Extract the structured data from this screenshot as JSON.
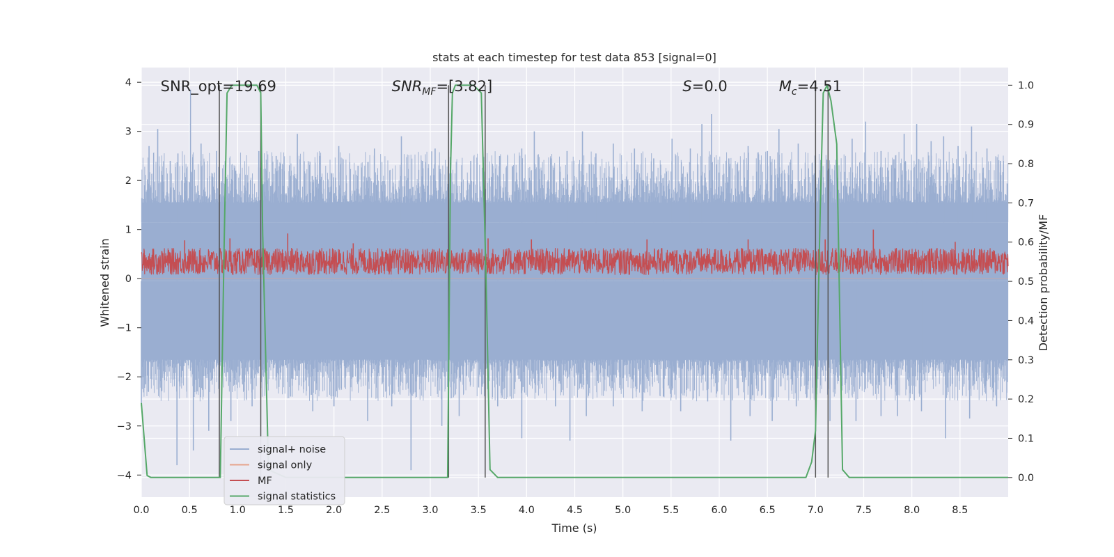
{
  "chart_data": {
    "type": "line",
    "title": "stats at each timestep for test data 853 [signal=0]",
    "xlabel": "Time (s)",
    "ylabel": "Whitened strain",
    "y2label": "Detection probability/MF",
    "xlim": [
      0.0,
      9.0
    ],
    "ylim": [
      -4.45,
      4.3
    ],
    "y2lim": [
      -0.05,
      1.045
    ],
    "xticks": [
      "0.0",
      "0.5",
      "1.0",
      "1.5",
      "2.0",
      "2.5",
      "3.0",
      "3.5",
      "4.0",
      "4.5",
      "5.0",
      "5.5",
      "6.0",
      "6.5",
      "7.0",
      "7.5",
      "8.0",
      "8.5"
    ],
    "yticks": [
      4,
      3,
      2,
      1,
      0,
      -1,
      -2,
      -3,
      -4
    ],
    "y2ticks": [
      "1.0",
      "0.9",
      "0.8",
      "0.7",
      "0.6",
      "0.5",
      "0.4",
      "0.3",
      "0.2",
      "0.1",
      "0.0"
    ],
    "grid": true,
    "legend_position": "lower-left",
    "colors": {
      "background": "#eaeaf2",
      "grid": "#ffffff",
      "noise": "#9aaed1",
      "signal_only": "#e6a48c",
      "mf": "#c44e52",
      "stat": "#55a868",
      "vline": "#555555"
    },
    "annotations": [
      {
        "text": "SNR_opt=19.69",
        "x": 0.2,
        "y": 3.92
      },
      {
        "text": "SNR",
        "sub": "MF",
        "rest": "=[3.82]",
        "x": 2.6,
        "y": 3.92
      },
      {
        "text": "S",
        "rest": "=0.0",
        "x": 5.62,
        "y": 3.92
      },
      {
        "text": "M",
        "sub": "c",
        "rest": "=4.51",
        "x": 6.62,
        "y": 3.92
      }
    ],
    "vlines": [
      0.81,
      1.24,
      3.19,
      3.57,
      7.0,
      7.13
    ],
    "noise_band": {
      "upper_y": [
        1.15,
        1.55,
        2.6
      ],
      "lower_y": [
        -0.05,
        -1.65,
        -2.5
      ]
    },
    "mf_band": {
      "low": 0.08,
      "high": 0.62
    },
    "series": [
      {
        "name": "signal+ noise",
        "kind": "noise",
        "peaks": [
          {
            "x": 0.08,
            "y": 2.7
          },
          {
            "x": 0.17,
            "y": 3.05
          },
          {
            "x": 0.3,
            "y": 2.4
          },
          {
            "x": 0.38,
            "y": 2.55
          },
          {
            "x": 0.51,
            "y": 3.85
          },
          {
            "x": 0.62,
            "y": 2.75
          },
          {
            "x": 0.78,
            "y": 2.6
          },
          {
            "x": 0.98,
            "y": 2.2
          },
          {
            "x": 1.22,
            "y": 2.6
          },
          {
            "x": 1.4,
            "y": 2.5
          },
          {
            "x": 1.62,
            "y": 2.95
          },
          {
            "x": 1.85,
            "y": 2.5
          },
          {
            "x": 2.05,
            "y": 2.7
          },
          {
            "x": 2.25,
            "y": 2.3
          },
          {
            "x": 2.42,
            "y": 2.65
          },
          {
            "x": 2.7,
            "y": 2.9
          },
          {
            "x": 2.92,
            "y": 2.4
          },
          {
            "x": 3.05,
            "y": 2.65
          },
          {
            "x": 3.42,
            "y": 2.4
          },
          {
            "x": 3.72,
            "y": 2.5
          },
          {
            "x": 3.95,
            "y": 2.65
          },
          {
            "x": 4.08,
            "y": 3.0
          },
          {
            "x": 4.25,
            "y": 2.45
          },
          {
            "x": 4.42,
            "y": 2.6
          },
          {
            "x": 4.58,
            "y": 3.0
          },
          {
            "x": 4.72,
            "y": 2.55
          },
          {
            "x": 4.9,
            "y": 2.75
          },
          {
            "x": 5.12,
            "y": 2.65
          },
          {
            "x": 5.32,
            "y": 2.45
          },
          {
            "x": 5.51,
            "y": 2.85
          },
          {
            "x": 5.7,
            "y": 2.65
          },
          {
            "x": 5.82,
            "y": 3.15
          },
          {
            "x": 5.92,
            "y": 3.35
          },
          {
            "x": 6.1,
            "y": 2.45
          },
          {
            "x": 6.3,
            "y": 2.7
          },
          {
            "x": 6.5,
            "y": 2.6
          },
          {
            "x": 6.62,
            "y": 3.05
          },
          {
            "x": 6.82,
            "y": 2.75
          },
          {
            "x": 7.22,
            "y": 2.7
          },
          {
            "x": 7.38,
            "y": 2.85
          },
          {
            "x": 7.52,
            "y": 3.2
          },
          {
            "x": 7.68,
            "y": 2.6
          },
          {
            "x": 7.92,
            "y": 2.95
          },
          {
            "x": 8.05,
            "y": 3.15
          },
          {
            "x": 8.2,
            "y": 2.8
          },
          {
            "x": 8.33,
            "y": 2.9
          },
          {
            "x": 8.48,
            "y": 2.7
          },
          {
            "x": 8.62,
            "y": 3.1
          },
          {
            "x": 8.78,
            "y": 2.65
          },
          {
            "x": 8.92,
            "y": 2.4
          }
        ],
        "troughs": [
          {
            "x": 0.0,
            "y": -2.6
          },
          {
            "x": 0.37,
            "y": -3.8
          },
          {
            "x": 0.54,
            "y": -3.5
          },
          {
            "x": 0.7,
            "y": -3.1
          },
          {
            "x": 0.93,
            "y": -2.9
          },
          {
            "x": 1.15,
            "y": -2.6
          },
          {
            "x": 1.55,
            "y": -2.4
          },
          {
            "x": 1.78,
            "y": -2.7
          },
          {
            "x": 2.0,
            "y": -2.6
          },
          {
            "x": 2.35,
            "y": -2.9
          },
          {
            "x": 2.6,
            "y": -2.6
          },
          {
            "x": 2.8,
            "y": -3.9
          },
          {
            "x": 3.12,
            "y": -3.0
          },
          {
            "x": 3.3,
            "y": -2.8
          },
          {
            "x": 3.7,
            "y": -2.6
          },
          {
            "x": 3.95,
            "y": -3.25
          },
          {
            "x": 4.3,
            "y": -2.6
          },
          {
            "x": 4.45,
            "y": -3.3
          },
          {
            "x": 4.62,
            "y": -2.8
          },
          {
            "x": 4.9,
            "y": -2.6
          },
          {
            "x": 5.2,
            "y": -2.7
          },
          {
            "x": 5.42,
            "y": -2.4
          },
          {
            "x": 5.6,
            "y": -2.7
          },
          {
            "x": 5.88,
            "y": -2.5
          },
          {
            "x": 6.12,
            "y": -3.3
          },
          {
            "x": 6.32,
            "y": -2.8
          },
          {
            "x": 6.55,
            "y": -2.9
          },
          {
            "x": 6.8,
            "y": -2.6
          },
          {
            "x": 7.15,
            "y": -2.9
          },
          {
            "x": 7.42,
            "y": -2.9
          },
          {
            "x": 7.68,
            "y": -2.8
          },
          {
            "x": 7.85,
            "y": -2.8
          },
          {
            "x": 8.1,
            "y": -2.7
          },
          {
            "x": 8.35,
            "y": -3.25
          },
          {
            "x": 8.6,
            "y": -2.85
          },
          {
            "x": 8.88,
            "y": -2.6
          }
        ]
      },
      {
        "name": "signal only",
        "kind": "signal_only",
        "x": [
          0.0,
          9.0
        ],
        "y": [
          0.0,
          0.0
        ]
      },
      {
        "name": "MF",
        "kind": "mf",
        "spikes": [
          {
            "x": 0.45,
            "y": 0.78
          },
          {
            "x": 0.92,
            "y": 0.82
          },
          {
            "x": 1.52,
            "y": 0.92
          },
          {
            "x": 2.2,
            "y": 0.72
          },
          {
            "x": 3.6,
            "y": 0.82
          },
          {
            "x": 4.05,
            "y": 0.8
          },
          {
            "x": 5.25,
            "y": 0.8
          },
          {
            "x": 6.3,
            "y": 0.8
          },
          {
            "x": 7.1,
            "y": 0.8
          },
          {
            "x": 7.6,
            "y": 1.0
          },
          {
            "x": 8.45,
            "y": 0.75
          }
        ]
      },
      {
        "name": "signal statistics",
        "kind": "stat",
        "axis": "right",
        "x": [
          0.0,
          0.06,
          0.1,
          0.2,
          0.4,
          0.6,
          0.8,
          0.82,
          0.86,
          0.89,
          0.94,
          1.05,
          1.15,
          1.2,
          1.24,
          1.26,
          1.32,
          1.5,
          2.0,
          2.5,
          3.0,
          3.18,
          3.21,
          3.23,
          3.26,
          3.3,
          3.45,
          3.53,
          3.58,
          3.62,
          3.7,
          4.0,
          5.0,
          6.0,
          6.9,
          6.96,
          7.0,
          7.05,
          7.08,
          7.12,
          7.16,
          7.22,
          7.28,
          7.35,
          8.0,
          9.0
        ],
        "y": [
          0.19,
          0.005,
          0.0,
          0.0,
          0.0,
          0.0,
          0.0,
          0.0,
          0.6,
          0.98,
          1.0,
          1.0,
          1.0,
          1.0,
          0.98,
          0.62,
          0.02,
          0.0,
          0.0,
          0.0,
          0.0,
          0.0,
          0.78,
          0.98,
          1.0,
          1.0,
          1.0,
          0.98,
          0.5,
          0.02,
          0.0,
          0.0,
          0.0,
          0.0,
          0.0,
          0.04,
          0.12,
          0.7,
          0.98,
          1.0,
          0.96,
          0.85,
          0.02,
          0.0,
          0.0,
          0.0
        ]
      }
    ]
  }
}
